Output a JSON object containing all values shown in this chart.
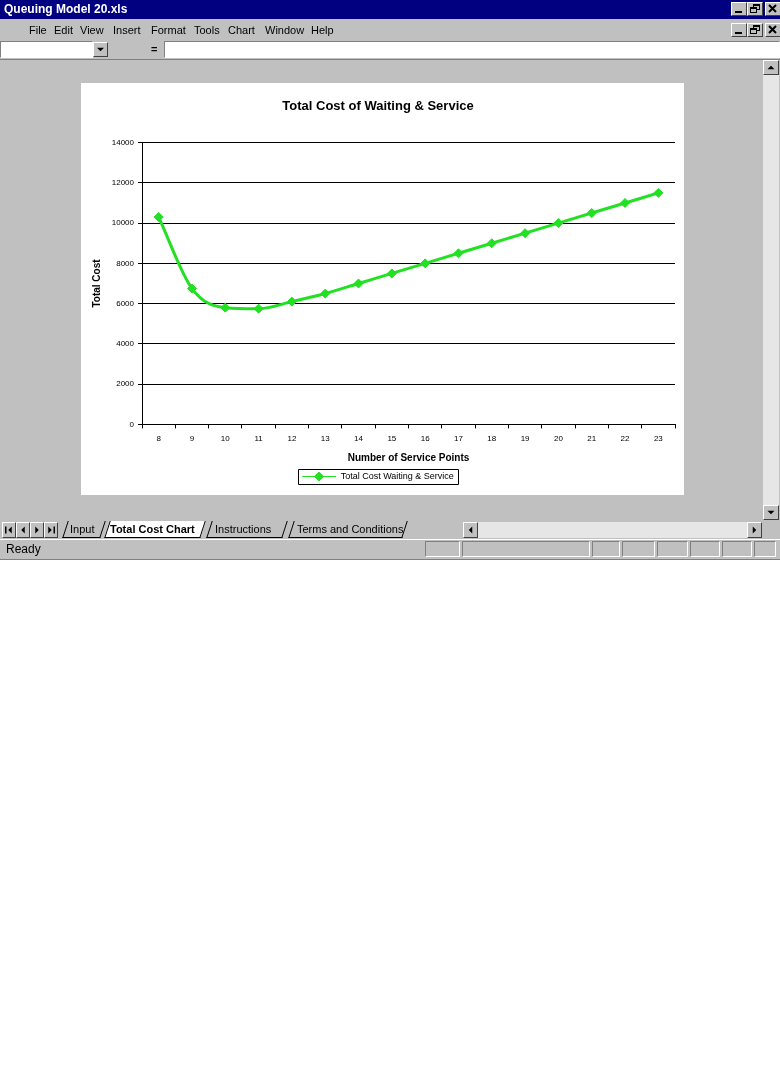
{
  "chart_data": {
    "type": "line",
    "title": "Total Cost of Waiting & Service",
    "xlabel": "Number of Service Points",
    "ylabel": "Total Cost",
    "categories": [
      "8",
      "9",
      "10",
      "11",
      "12",
      "13",
      "14",
      "15",
      "16",
      "17",
      "18",
      "19",
      "20",
      "21",
      "22",
      "23"
    ],
    "series": [
      {
        "name": "Total Cost Waiting & Service",
        "color": "#22e022",
        "values": [
          10300,
          6750,
          5800,
          5750,
          6100,
          6500,
          7000,
          7500,
          8000,
          8500,
          9000,
          9500,
          10000,
          10500,
          11000,
          11500
        ]
      }
    ],
    "ylim": [
      0,
      14000
    ],
    "yticks": [
      0,
      2000,
      4000,
      6000,
      8000,
      10000,
      12000,
      14000
    ],
    "grid": "y",
    "legend": "bottom",
    "marker": "diamond",
    "annotations": [
      "Queuing Model 20.xls",
      "File",
      "Edit",
      "View",
      "Insert",
      "Format",
      "Tools",
      "Chart",
      "Window",
      "Help",
      "=",
      "Input",
      "Total Cost Chart",
      "Instructions",
      "Terms and Conditions",
      "Ready"
    ]
  }
}
